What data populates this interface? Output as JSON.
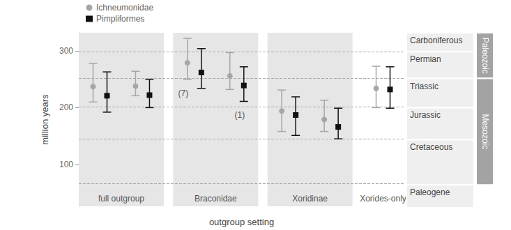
{
  "chart_data": {
    "type": "errorbar",
    "y_label": "million years",
    "x_label": "outgroup setting",
    "categories": [
      "full outgroup",
      "Braconidae",
      "Xoridinae",
      "Xorides-only"
    ],
    "panel_colors": [
      "#e6e6e6",
      "#e6e6e6",
      "#e6e6e6",
      "#ffffff"
    ],
    "series": [
      {
        "name": "Ichneumonidae",
        "color": "#a6a6a6",
        "marker": "circle",
        "values": [
          [
            237,
            238
          ],
          [
            279,
            256
          ],
          [
            194,
            179
          ],
          [
            234
          ]
        ],
        "error_low": [
          [
            210,
            221
          ],
          [
            250,
            232
          ],
          [
            158,
            158
          ],
          [
            200
          ]
        ],
        "error_high": [
          [
            278,
            264
          ],
          [
            322,
            297
          ],
          [
            231,
            213
          ],
          [
            273
          ]
        ]
      },
      {
        "name": "Pimpliformes",
        "color": "#111111",
        "marker": "square",
        "values": [
          [
            221,
            222
          ],
          [
            262,
            239
          ],
          [
            187,
            166
          ],
          [
            232
          ]
        ],
        "error_low": [
          [
            192,
            200
          ],
          [
            234,
            211
          ],
          [
            151,
            145
          ],
          [
            199
          ]
        ],
        "error_high": [
          [
            263,
            250
          ],
          [
            304,
            272
          ],
          [
            219,
            199
          ],
          [
            272
          ]
        ]
      }
    ],
    "annotations": [
      {
        "text": "(7)",
        "series": "Ichneumonidae",
        "category": "Braconidae",
        "index": 0
      },
      {
        "text": "(1)",
        "series": "Pimpliformes",
        "category": "Braconidae",
        "index": 1
      }
    ],
    "ylim": [
      26,
      332
    ],
    "yticks": [
      100,
      200,
      300
    ],
    "grid": false,
    "legend": "top-left",
    "tick_labels": "y",
    "timescale": {
      "periods": [
        {
          "name": "Carboniferous",
          "from": 299,
          "to": 332
        },
        {
          "name": "Permian",
          "from": 252,
          "to": 299
        },
        {
          "name": "Triassic",
          "from": 201,
          "to": 252
        },
        {
          "name": "Jurassic",
          "from": 145,
          "to": 201
        },
        {
          "name": "Cretaceous",
          "from": 66,
          "to": 145
        },
        {
          "name": "Paleogene",
          "from": 26,
          "to": 66
        }
      ],
      "eras": [
        {
          "name": "Paleozoic",
          "from": 252,
          "to": 332
        },
        {
          "name": "Mesozoic",
          "from": 66,
          "to": 252
        }
      ]
    }
  }
}
